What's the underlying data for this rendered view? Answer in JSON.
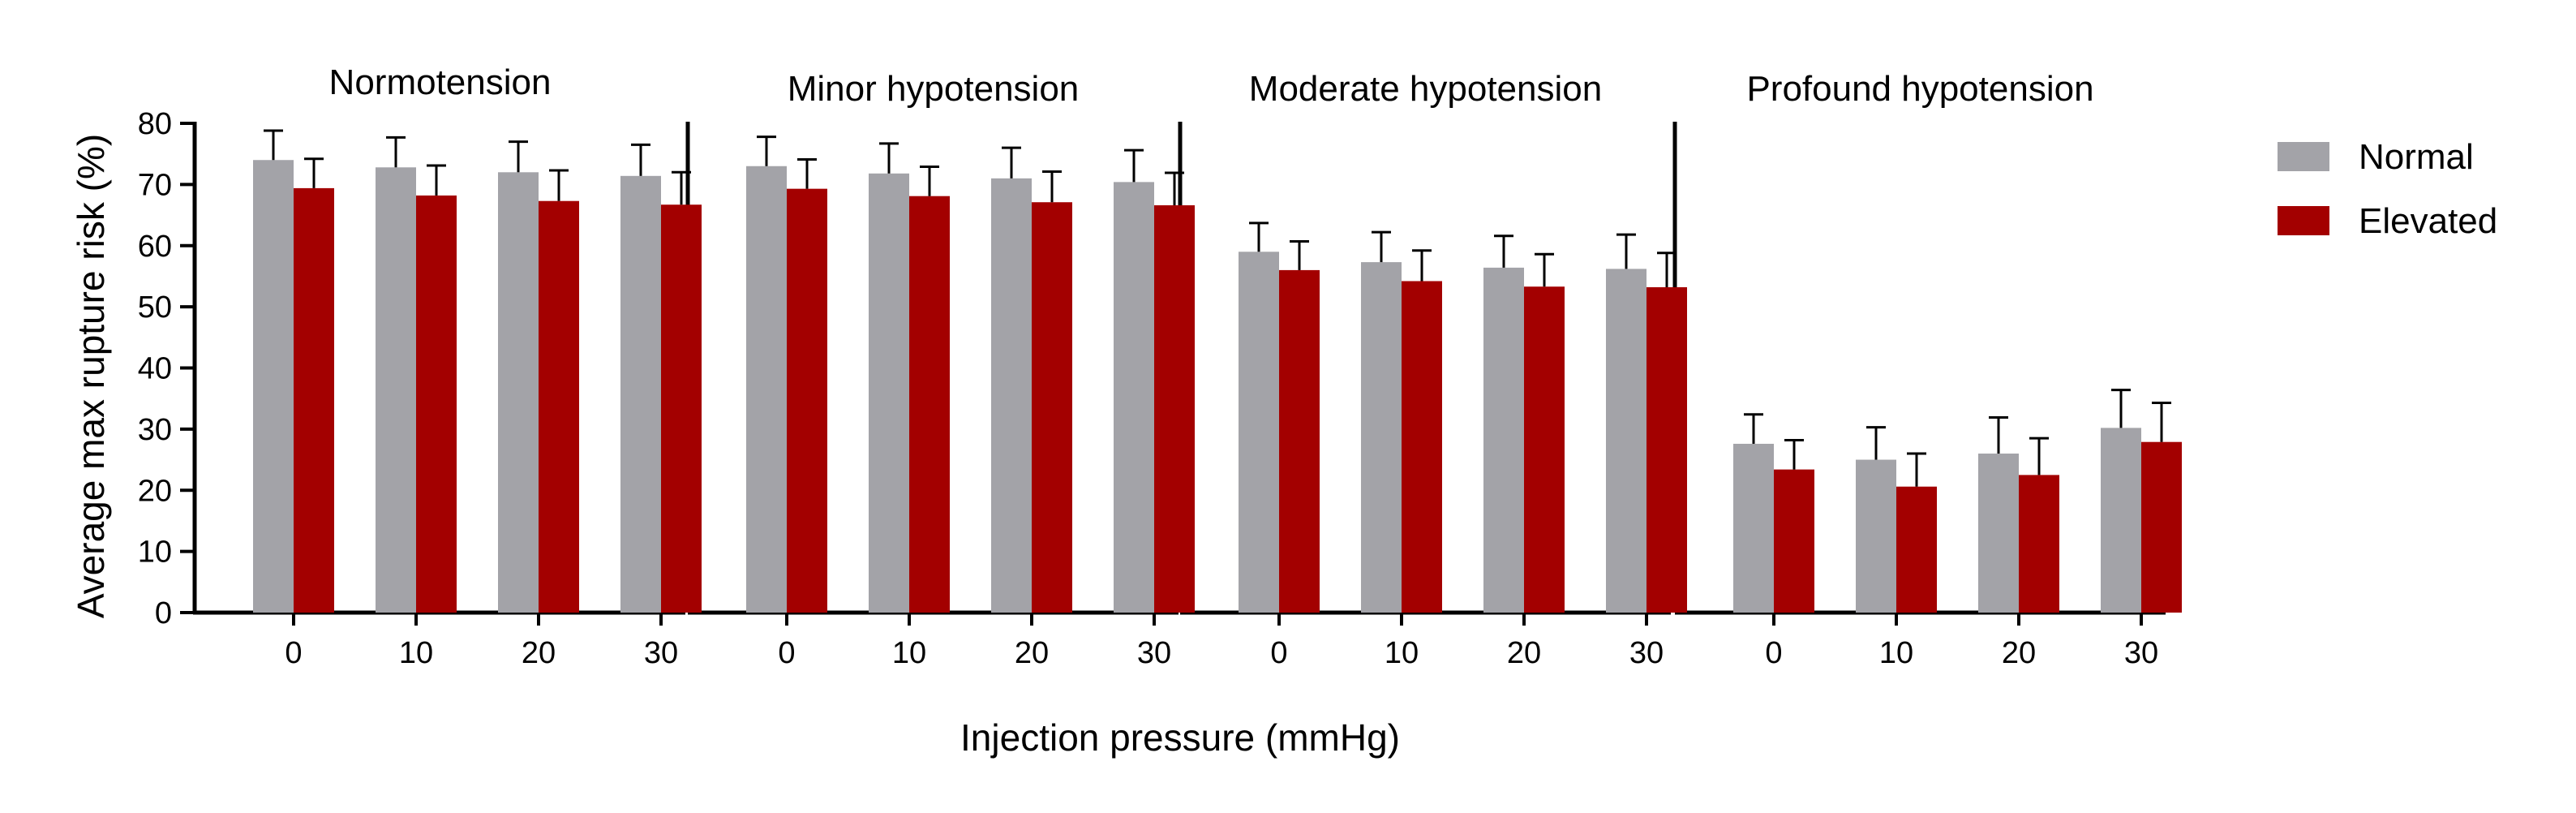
{
  "chart_data": {
    "type": "bar",
    "ylabel": "Average max rupture risk (%)",
    "xlabel": "Injection pressure (mmHg)",
    "ylim": [
      0,
      80
    ],
    "yticks": [
      0,
      10,
      20,
      30,
      40,
      50,
      60,
      70,
      80
    ],
    "categories": [
      "0",
      "10",
      "20",
      "30"
    ],
    "legend": {
      "position": "right",
      "entries": [
        "Normal",
        "Elevated"
      ]
    },
    "colors": {
      "Normal": "#a3a3a8",
      "Elevated": "#a30000"
    },
    "panels": [
      {
        "title": "Normotension",
        "series": [
          {
            "name": "Normal",
            "values": [
              74.0,
              72.8,
              72.0,
              71.4
            ],
            "error": [
              4.8,
              4.9,
              5.0,
              5.1
            ]
          },
          {
            "name": "Elevated",
            "values": [
              69.4,
              68.2,
              67.3,
              66.7
            ],
            "error": [
              4.8,
              4.9,
              5.0,
              5.3
            ]
          }
        ]
      },
      {
        "title": "Minor hypotension",
        "series": [
          {
            "name": "Normal",
            "values": [
              73.0,
              71.8,
              71.0,
              70.4
            ],
            "error": [
              4.8,
              4.9,
              5.0,
              5.2
            ]
          },
          {
            "name": "Elevated",
            "values": [
              69.3,
              68.1,
              67.1,
              66.6
            ],
            "error": [
              4.8,
              4.8,
              5.0,
              5.3
            ]
          }
        ]
      },
      {
        "title": "Moderate hypotension",
        "series": [
          {
            "name": "Normal",
            "values": [
              59.0,
              57.3,
              56.4,
              56.2
            ],
            "error": [
              4.7,
              4.9,
              5.2,
              5.6
            ]
          },
          {
            "name": "Elevated",
            "values": [
              56.0,
              54.2,
              53.3,
              53.2
            ],
            "error": [
              4.7,
              5.0,
              5.3,
              5.6
            ]
          }
        ]
      },
      {
        "title": "Profound hypotension",
        "series": [
          {
            "name": "Normal",
            "values": [
              27.6,
              25.0,
              26.0,
              30.2
            ],
            "error": [
              4.8,
              5.3,
              5.9,
              6.2
            ]
          },
          {
            "name": "Elevated",
            "values": [
              23.4,
              20.6,
              22.5,
              27.9
            ],
            "error": [
              4.8,
              5.4,
              6.0,
              6.4
            ]
          }
        ]
      }
    ]
  }
}
